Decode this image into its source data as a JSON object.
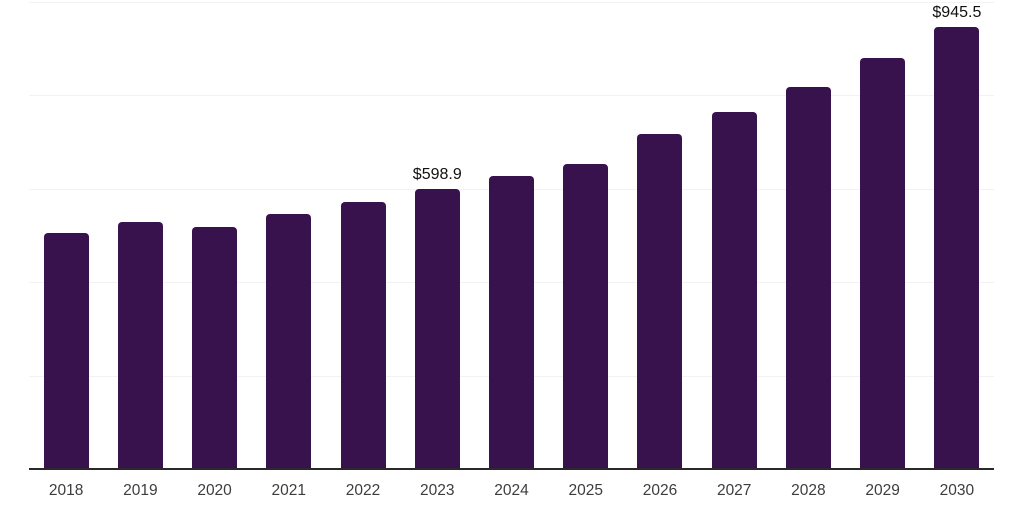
{
  "chart_data": {
    "type": "bar",
    "title": "",
    "xlabel": "",
    "ylabel": "",
    "categories": [
      "2018",
      "2019",
      "2020",
      "2021",
      "2022",
      "2023",
      "2024",
      "2025",
      "2026",
      "2027",
      "2028",
      "2029",
      "2030"
    ],
    "values": [
      505.0,
      529.0,
      518.0,
      546.0,
      571.5,
      598.9,
      626.5,
      653.5,
      717.0,
      763.5,
      818.0,
      880.5,
      945.5
    ],
    "value_labels": {
      "2023": "$598.9",
      "2030": "$945.5"
    },
    "ylim": [
      0,
      1000
    ],
    "grid_step": 200,
    "grid": "horizontal",
    "y_tick_labels_visible": false,
    "legend_position": "none",
    "colors": {
      "bar": "#37124D",
      "axis_line": "#2a2a2a",
      "gridline": "#f2f2f2",
      "tick_label": "#3d3d3d",
      "value_label": "#111111",
      "background": "#ffffff"
    }
  }
}
